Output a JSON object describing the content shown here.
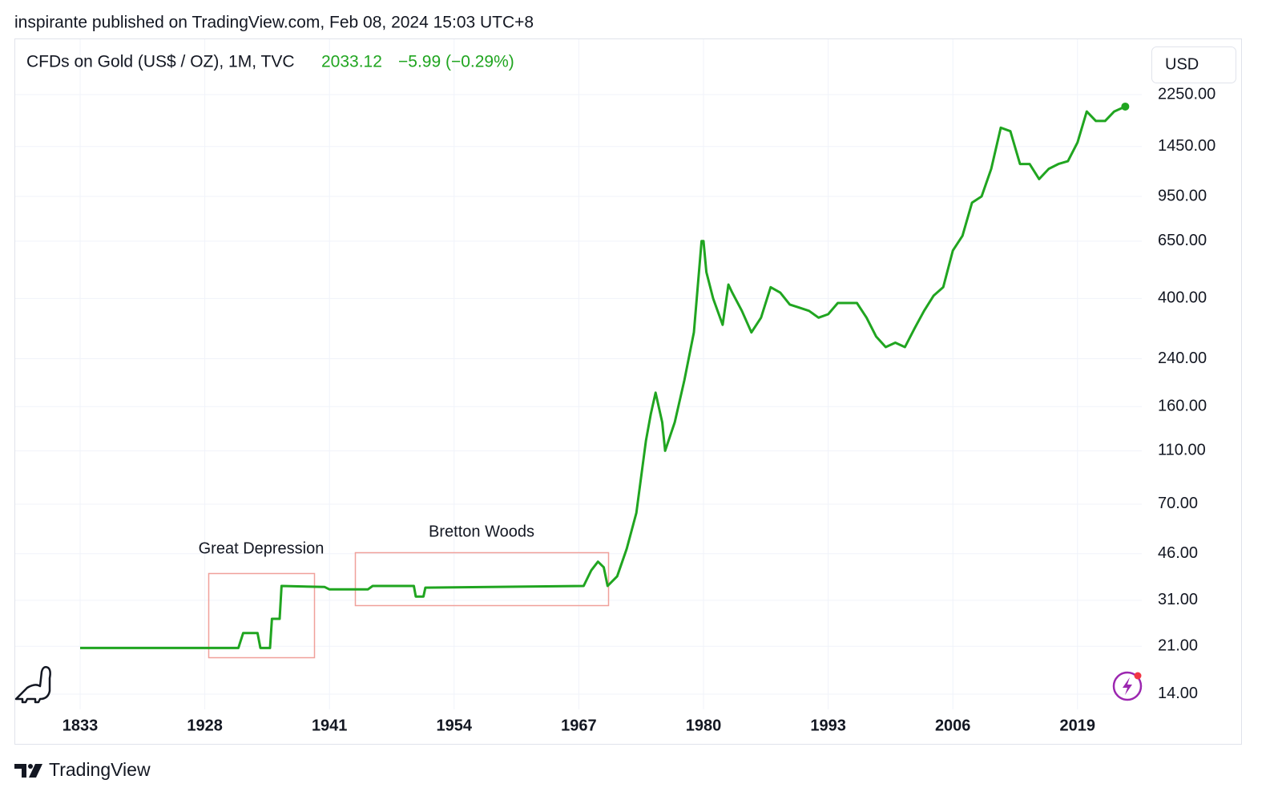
{
  "header": {
    "published": "inspirante published on TradingView.com, Feb 08, 2024 15:03 UTC+8",
    "symbol": "CFDs on Gold (US$ / OZ), 1M, TVC",
    "price": "2033.12",
    "change": "−5.99 (−0.29%)",
    "currency": "USD",
    "brand": "TradingView"
  },
  "chart_data": {
    "type": "line",
    "color": "#20a520",
    "log_scale": true,
    "grid": true,
    "annotations": [
      "Great Depression",
      "Bretton Woods"
    ],
    "x": [
      1833,
      1931.5,
      1932,
      1933.5,
      1933.8,
      1934.8,
      1935,
      1935.8,
      1936,
      1940.5,
      1941,
      1945,
      1945.5,
      1949.8,
      1950,
      1950.8,
      1951,
      1967.5,
      1968.3,
      1969,
      1969.6,
      1970,
      1971,
      1972,
      1973,
      1974,
      1974.5,
      1975,
      1975.7,
      1976,
      1977,
      1978,
      1979,
      1979.8,
      1980,
      1980.3,
      1981,
      1982,
      1982.6,
      1983,
      1984,
      1985,
      1986,
      1987,
      1988,
      1989,
      1990,
      1991,
      1992,
      1993,
      1994,
      1996,
      1997,
      1998,
      1999,
      2000,
      2001,
      2002,
      2003,
      2004,
      2005,
      2006,
      2007,
      2008,
      2009,
      2010,
      2011,
      2012,
      2013,
      2014,
      2015,
      2016,
      2017,
      2018,
      2019,
      2020,
      2021,
      2022,
      2023,
      2024.2
    ],
    "values": [
      20.7,
      20.7,
      23.5,
      23.5,
      20.7,
      20.7,
      26.5,
      26.5,
      35,
      34.7,
      34,
      34,
      35,
      35,
      32,
      32,
      34.5,
      35,
      40,
      43,
      41,
      35,
      38,
      48,
      65,
      120,
      150,
      180,
      140,
      110,
      140,
      200,
      300,
      650,
      650,
      500,
      400,
      320,
      450,
      420,
      360,
      300,
      340,
      440,
      420,
      380,
      370,
      360,
      340,
      350,
      385,
      385,
      340,
      290,
      265,
      275,
      265,
      310,
      360,
      410,
      440,
      600,
      680,
      900,
      950,
      1200,
      1700,
      1650,
      1250,
      1250,
      1100,
      1200,
      1250,
      1280,
      1500,
      1950,
      1800,
      1800,
      1950,
      2033.12
    ],
    "xlim": [
      1781,
      2026
    ],
    "xticks": [
      1833,
      1928,
      1941,
      1954,
      1967,
      1980,
      1993,
      2006,
      2019
    ],
    "ylim": [
      12.3,
      3620
    ],
    "yticks": [
      {
        "value": 14,
        "label": "14.00"
      },
      {
        "value": 21,
        "label": "21.00"
      },
      {
        "value": 31,
        "label": "31.00"
      },
      {
        "value": 46,
        "label": "46.00"
      },
      {
        "value": 70,
        "label": "70.00"
      },
      {
        "value": 110,
        "label": "110.00"
      },
      {
        "value": 160,
        "label": "160.00"
      },
      {
        "value": 240,
        "label": "240.00"
      },
      {
        "value": 400,
        "label": "400.00"
      },
      {
        "value": 650,
        "label": "650.00"
      },
      {
        "value": 950,
        "label": "950.00"
      },
      {
        "value": 1450,
        "label": "1450.00"
      },
      {
        "value": 2250,
        "label": "2250.00"
      }
    ]
  }
}
